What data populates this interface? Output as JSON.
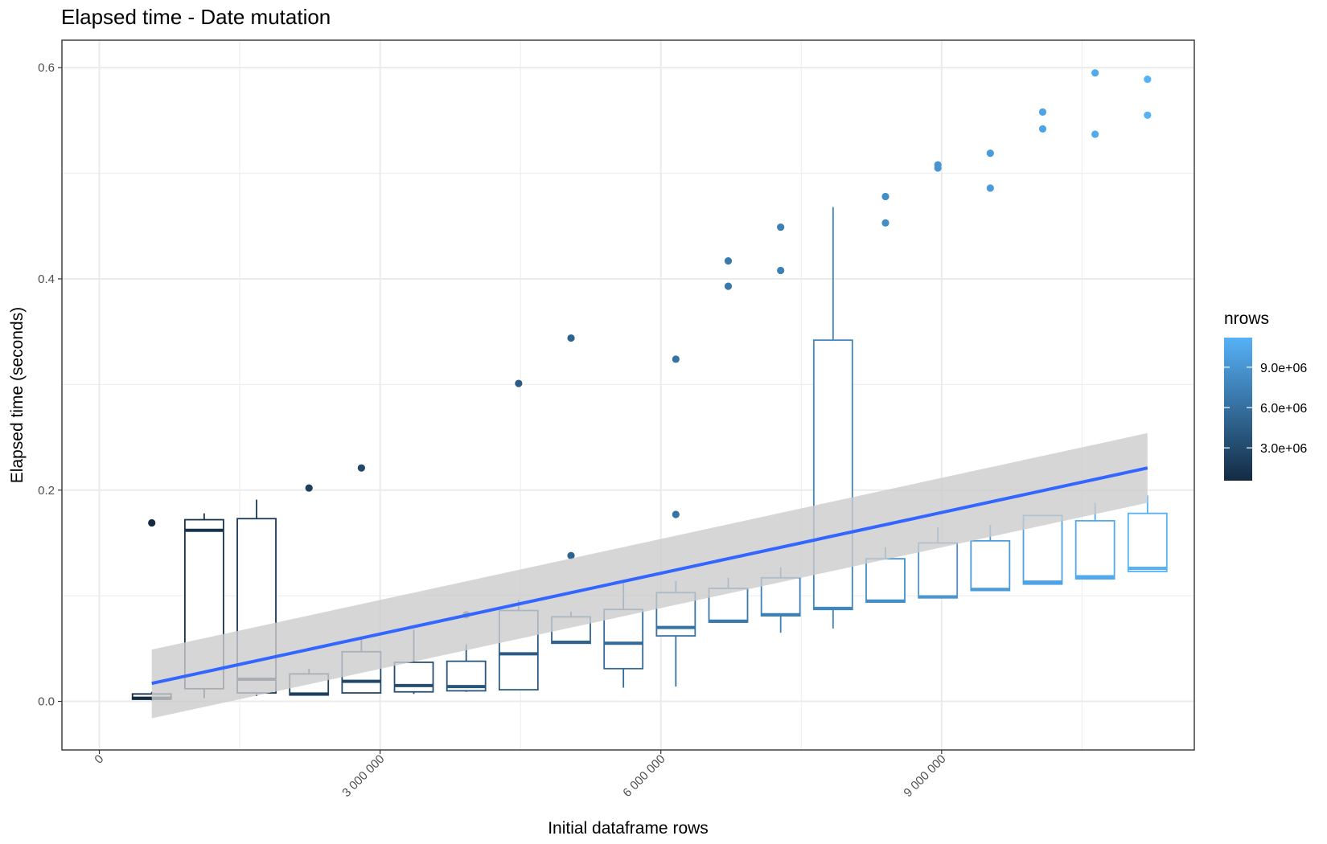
{
  "chart_data": {
    "type": "box",
    "title": "Elapsed time - Date mutation",
    "xlabel": "Initial dataframe rows",
    "ylabel": "Elapsed time (seconds)",
    "xlim": [
      -400000,
      11700000
    ],
    "ylim": [
      -0.046,
      0.626
    ],
    "x_ticks": [
      {
        "value": 0,
        "label": "0"
      },
      {
        "value": 3000000,
        "label": "3 000 000"
      },
      {
        "value": 6000000,
        "label": "6 000 000"
      },
      {
        "value": 9000000,
        "label": "9 000 000"
      }
    ],
    "y_ticks": [
      {
        "value": 0.0,
        "label": "0.0"
      },
      {
        "value": 0.2,
        "label": "0.2"
      },
      {
        "value": 0.4,
        "label": "0.4"
      },
      {
        "value": 0.6,
        "label": "0.6"
      }
    ],
    "grid": true,
    "legend": {
      "title": "nrows",
      "placement": "right",
      "low": 560000,
      "high": 11200000,
      "low_color": "#132b43",
      "high_color": "#56b1f7",
      "ticks": [
        {
          "value": 3000000,
          "label": "3.0e+06"
        },
        {
          "value": 6000000,
          "label": "6.0e+06"
        },
        {
          "value": 9000000,
          "label": "9.0e+06"
        }
      ]
    },
    "boxes": [
      {
        "x": 560000,
        "lower": 0.001,
        "q1": 0.002,
        "median": 0.003,
        "q3": 0.007,
        "upper": 0.009,
        "outliers": [
          0.169
        ]
      },
      {
        "x": 1120000,
        "lower": 0.003,
        "q1": 0.012,
        "median": 0.162,
        "q3": 0.172,
        "upper": 0.178,
        "outliers": []
      },
      {
        "x": 1680000,
        "lower": 0.005,
        "q1": 0.008,
        "median": 0.021,
        "q3": 0.173,
        "upper": 0.191,
        "outliers": []
      },
      {
        "x": 2240000,
        "lower": 0.006,
        "q1": 0.006,
        "median": 0.007,
        "q3": 0.026,
        "upper": 0.031,
        "outliers": [
          0.202
        ]
      },
      {
        "x": 2800000,
        "lower": 0.008,
        "q1": 0.008,
        "median": 0.019,
        "q3": 0.047,
        "upper": 0.059,
        "outliers": [
          0.221
        ]
      },
      {
        "x": 3360000,
        "lower": 0.007,
        "q1": 0.009,
        "median": 0.015,
        "q3": 0.037,
        "upper": 0.068,
        "outliers": []
      },
      {
        "x": 3920000,
        "lower": 0.009,
        "q1": 0.01,
        "median": 0.014,
        "q3": 0.038,
        "upper": 0.054,
        "outliers": [
          0.082
        ]
      },
      {
        "x": 4480000,
        "lower": 0.011,
        "q1": 0.011,
        "median": 0.045,
        "q3": 0.086,
        "upper": 0.096,
        "outliers": [
          0.301
        ]
      },
      {
        "x": 5040000,
        "lower": 0.055,
        "q1": 0.055,
        "median": 0.056,
        "q3": 0.08,
        "upper": 0.085,
        "outliers": [
          0.138,
          0.344
        ]
      },
      {
        "x": 5600000,
        "lower": 0.013,
        "q1": 0.031,
        "median": 0.055,
        "q3": 0.087,
        "upper": 0.115,
        "outliers": []
      },
      {
        "x": 6160000,
        "lower": 0.014,
        "q1": 0.062,
        "median": 0.07,
        "q3": 0.103,
        "upper": 0.114,
        "outliers": [
          0.177,
          0.324
        ]
      },
      {
        "x": 6720000,
        "lower": 0.075,
        "q1": 0.075,
        "median": 0.076,
        "q3": 0.107,
        "upper": 0.117,
        "outliers": [
          0.393,
          0.417
        ]
      },
      {
        "x": 7280000,
        "lower": 0.065,
        "q1": 0.081,
        "median": 0.082,
        "q3": 0.117,
        "upper": 0.127,
        "outliers": [
          0.408,
          0.449
        ]
      },
      {
        "x": 7840000,
        "lower": 0.069,
        "q1": 0.087,
        "median": 0.088,
        "q3": 0.342,
        "upper": 0.468,
        "outliers": []
      },
      {
        "x": 8400000,
        "lower": 0.094,
        "q1": 0.094,
        "median": 0.095,
        "q3": 0.135,
        "upper": 0.146,
        "outliers": [
          0.453,
          0.478
        ]
      },
      {
        "x": 8960000,
        "lower": 0.098,
        "q1": 0.098,
        "median": 0.099,
        "q3": 0.15,
        "upper": 0.165,
        "outliers": [
          0.505,
          0.508
        ]
      },
      {
        "x": 9520000,
        "lower": 0.105,
        "q1": 0.105,
        "median": 0.106,
        "q3": 0.152,
        "upper": 0.167,
        "outliers": [
          0.486,
          0.519
        ]
      },
      {
        "x": 10080000,
        "lower": 0.111,
        "q1": 0.111,
        "median": 0.113,
        "q3": 0.176,
        "upper": 0.176,
        "outliers": [
          0.542,
          0.558
        ]
      },
      {
        "x": 10640000,
        "lower": 0.116,
        "q1": 0.116,
        "median": 0.118,
        "q3": 0.171,
        "upper": 0.188,
        "outliers": [
          0.537,
          0.595
        ]
      },
      {
        "x": 11200000,
        "lower": 0.123,
        "q1": 0.123,
        "median": 0.126,
        "q3": 0.178,
        "upper": 0.195,
        "outliers": [
          0.555,
          0.589
        ]
      }
    ],
    "trend": {
      "method": "linear",
      "color": "#3366ff",
      "band_color": "#cccccc",
      "start": {
        "x": 560000,
        "y": 0.017,
        "lower": -0.016,
        "upper": 0.049
      },
      "end": {
        "x": 11200000,
        "y": 0.221,
        "lower": 0.188,
        "upper": 0.254
      }
    }
  }
}
